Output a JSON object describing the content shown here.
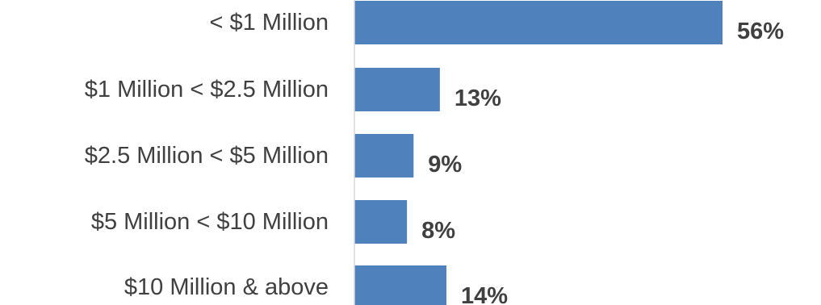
{
  "chart_data": {
    "type": "bar",
    "orientation": "horizontal",
    "categories": [
      "< $1 Million",
      "$1 Million < $2.5 Million",
      "$2.5 Million < $5 Million",
      "$5 Million < $10 Million",
      "$10 Million & above"
    ],
    "values": [
      56,
      13,
      9,
      8,
      14
    ],
    "value_labels": [
      "56%",
      "13%",
      "9%",
      "8%",
      "14%"
    ],
    "xlim": [
      0,
      56
    ],
    "grid": false,
    "legend": "none",
    "colors": {
      "bar": "#4f81bd",
      "text": "#404040",
      "axis": "#d9d9d9"
    }
  }
}
